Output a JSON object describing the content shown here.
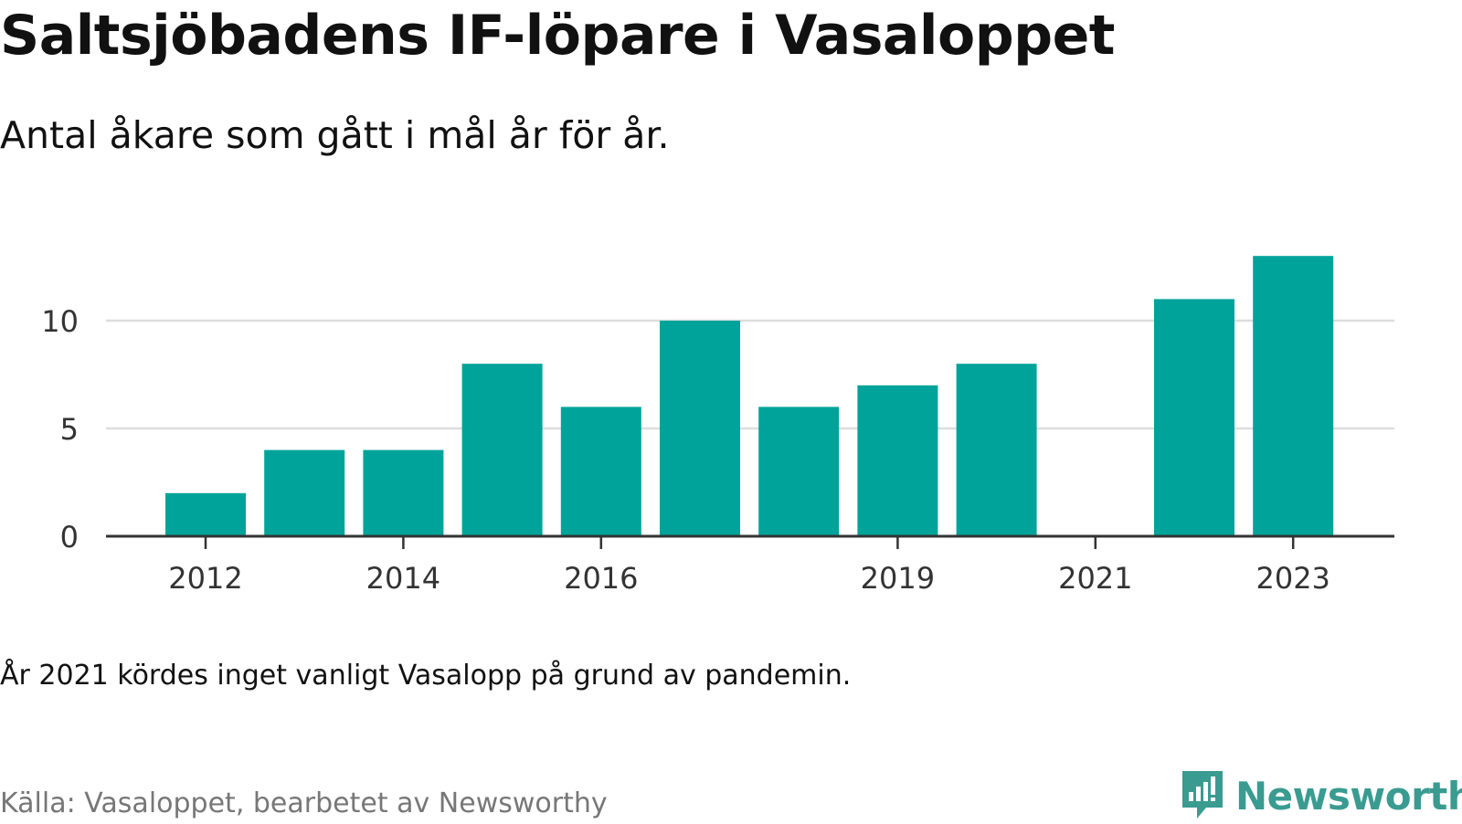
{
  "title": "Saltsjöbadens IF-löpare i Vasaloppet",
  "subtitle": "Antal åkare som gått i mål år för år.",
  "note": "År 2021 kördes inget vanligt Vasalopp på grund av pandemin.",
  "source": "Källa: Vasaloppet, bearbetet av Newsworthy",
  "brand": {
    "name": "Newsworthy",
    "icon": "newsworthy-logo-icon"
  },
  "colors": {
    "bar": "#00a39a",
    "grid": "#dddddd",
    "axis": "#333333",
    "brand": "#3a9b91"
  },
  "chart_data": {
    "type": "bar",
    "categories": [
      "2012",
      "2013",
      "2014",
      "2015",
      "2016",
      "2017",
      "2018",
      "2019",
      "2020",
      "2021",
      "2022",
      "2023"
    ],
    "values": [
      2,
      4,
      4,
      8,
      6,
      10,
      6,
      7,
      8,
      0,
      11,
      13
    ],
    "x_tick_labels": [
      "2012",
      "2014",
      "2016",
      "2019",
      "2021",
      "2023"
    ],
    "y_ticks": [
      0,
      5,
      10
    ],
    "ylim": [
      0,
      13
    ],
    "grid": true,
    "legend": "none"
  }
}
